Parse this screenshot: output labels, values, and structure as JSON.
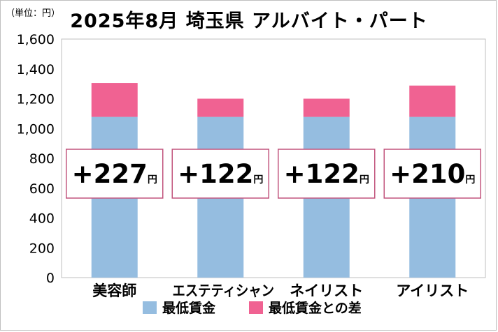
{
  "unit_label": "（単位：円）",
  "title": "2025年8月 埼玉県 アルバイト・パート",
  "colors": {
    "base": "#95bde0",
    "diff": "#f06292",
    "callout_border": "#c2547d",
    "plot_border": "#bfbfbf",
    "grid": "#d9d9d9"
  },
  "chart_data": {
    "type": "bar",
    "stacked": true,
    "categories": [
      "美容師",
      "エステティシャン",
      "ネイリスト",
      "アイリスト"
    ],
    "series": [
      {
        "name": "最低賃金",
        "color": "#95bde0",
        "values": [
          1078,
          1078,
          1078,
          1078
        ]
      },
      {
        "name": "最低賃金との差",
        "color": "#f06292",
        "values": [
          227,
          122,
          122,
          210
        ]
      }
    ],
    "callouts": [
      {
        "value": "+227",
        "unit": "円"
      },
      {
        "value": "+122",
        "unit": "円"
      },
      {
        "value": "+122",
        "unit": "円"
      },
      {
        "value": "+210",
        "unit": "円"
      }
    ],
    "y_ticks": [
      "0",
      "200",
      "400",
      "600",
      "800",
      "1,000",
      "1,200",
      "1,400",
      "1,600"
    ],
    "ylim": [
      0,
      1600
    ],
    "grid": false,
    "legend_position": "bottom"
  }
}
